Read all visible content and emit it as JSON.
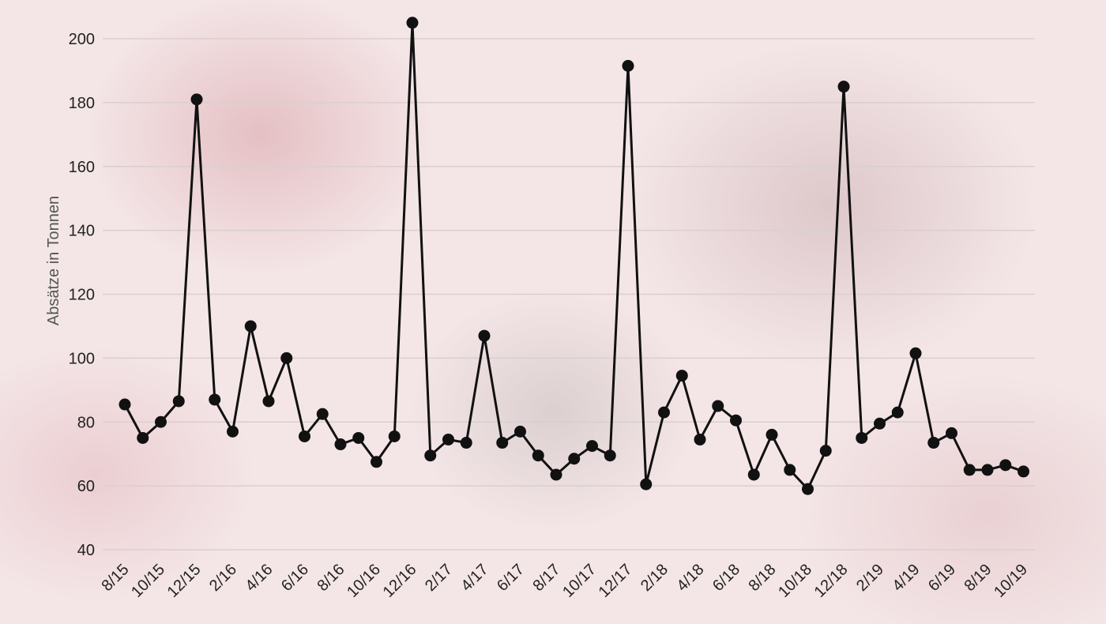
{
  "chart_data": {
    "type": "line",
    "ylabel": "Absätze in Tonnen",
    "xlabel": "",
    "ylim": [
      35,
      205
    ],
    "yticks": [
      40,
      60,
      80,
      100,
      120,
      140,
      160,
      180,
      200
    ],
    "grid": true,
    "x": [
      "8/15",
      "9/15",
      "10/15",
      "11/15",
      "12/15",
      "1/16",
      "2/16",
      "3/16",
      "4/16",
      "5/16",
      "6/16",
      "7/16",
      "8/16",
      "9/16",
      "10/16",
      "11/16",
      "12/16",
      "1/17",
      "2/17",
      "3/17",
      "4/17",
      "5/17",
      "6/17",
      "7/17",
      "8/17",
      "9/17",
      "10/17",
      "11/17",
      "12/17",
      "1/18",
      "2/18",
      "3/18",
      "4/18",
      "5/18",
      "6/18",
      "7/18",
      "8/18",
      "9/18",
      "10/18",
      "11/18",
      "12/18",
      "1/19",
      "2/19",
      "3/19",
      "4/19",
      "5/19",
      "6/19",
      "7/19",
      "8/19",
      "9/19",
      "10/19"
    ],
    "x_tick_labels": [
      "8/15",
      "10/15",
      "12/15",
      "2/16",
      "4/16",
      "6/16",
      "8/16",
      "10/16",
      "12/16",
      "2/17",
      "4/17",
      "6/17",
      "8/17",
      "10/17",
      "12/17",
      "2/18",
      "4/18",
      "6/18",
      "8/18",
      "10/18",
      "12/18",
      "2/19",
      "4/19",
      "6/19",
      "8/19",
      "10/19"
    ],
    "series": [
      {
        "values": [
          85.5,
          75,
          80,
          86.5,
          181,
          87,
          77,
          110,
          86.5,
          100,
          75.5,
          82.5,
          73,
          75,
          67.5,
          75.5,
          205,
          69.5,
          74.5,
          73.5,
          107,
          73.5,
          77,
          69.5,
          63.5,
          68.5,
          72.5,
          69.5,
          191.5,
          60.5,
          83,
          94.5,
          74.5,
          85,
          80.5,
          63.5,
          76,
          65,
          59,
          71,
          185,
          75,
          79.5,
          83,
          101.5,
          73.5,
          76.5,
          65,
          65,
          66.5,
          64.5
        ]
      }
    ],
    "line_color": "#111111",
    "grid_color": "#d9cfcf"
  }
}
